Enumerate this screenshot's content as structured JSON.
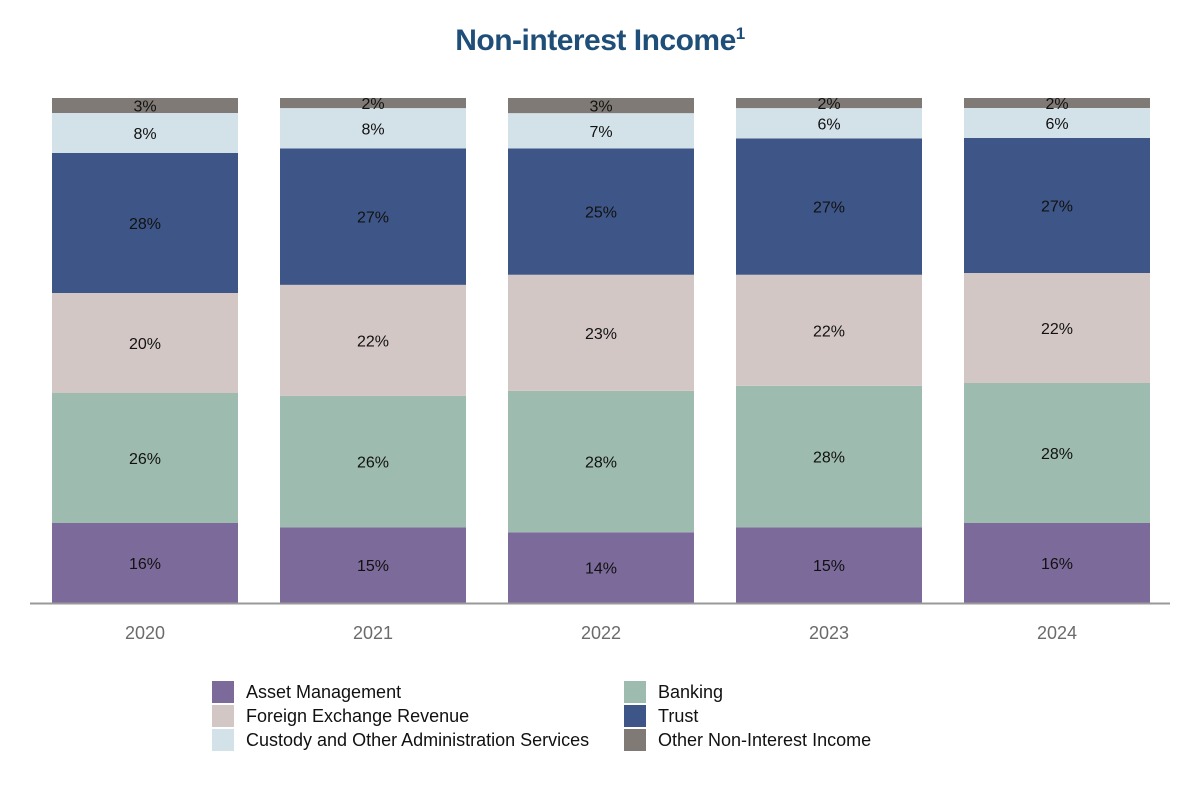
{
  "title": "Non-interest Income",
  "title_footnote": "1",
  "colors": {
    "asset_management": "#7c6a9a",
    "banking": "#9dbbae",
    "fx_revenue": "#d3c7c6",
    "trust": "#3e5687",
    "custody": "#d3e1e8",
    "other": "#7f7a75",
    "axis": "#999999"
  },
  "chart_data": {
    "type": "bar",
    "stacked": true,
    "title": "Non-interest Income¹",
    "xlabel": "",
    "ylabel": "",
    "ylim": [
      0,
      100
    ],
    "categories": [
      "2020",
      "2021",
      "2022",
      "2023",
      "2024"
    ],
    "series": [
      {
        "key": "asset_management",
        "name": "Asset Management",
        "values": [
          16,
          15,
          14,
          15,
          16
        ]
      },
      {
        "key": "banking",
        "name": "Banking",
        "values": [
          26,
          26,
          28,
          28,
          28
        ]
      },
      {
        "key": "fx_revenue",
        "name": "Foreign Exchange Revenue",
        "values": [
          20,
          22,
          23,
          22,
          22
        ]
      },
      {
        "key": "trust",
        "name": "Trust",
        "values": [
          28,
          27,
          25,
          27,
          27
        ]
      },
      {
        "key": "custody",
        "name": "Custody and Other Administration Services",
        "values": [
          8,
          8,
          7,
          6,
          6
        ]
      },
      {
        "key": "other",
        "name": "Other Non-Interest Income",
        "values": [
          3,
          2,
          3,
          2,
          2
        ]
      }
    ],
    "legend_order": [
      "asset_management",
      "banking",
      "fx_revenue",
      "trust",
      "custody",
      "other"
    ],
    "legend_position": "bottom",
    "grid": false
  }
}
